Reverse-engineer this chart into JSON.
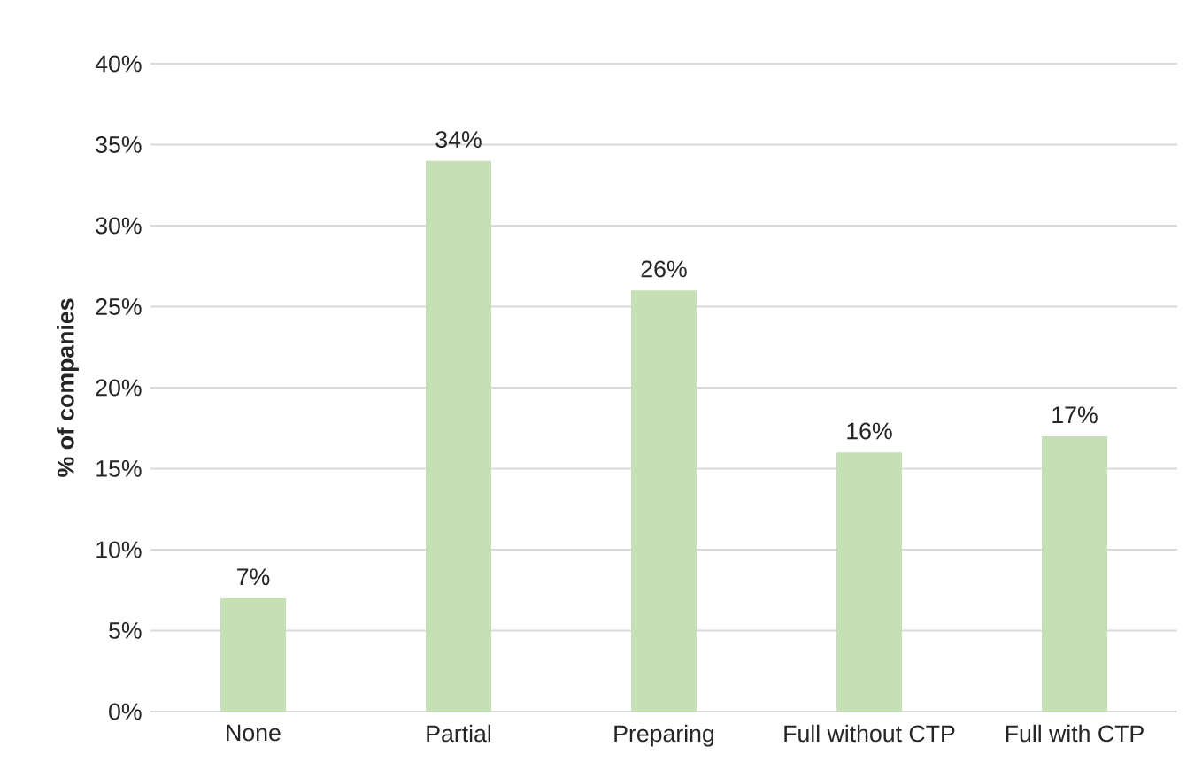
{
  "chart_data": {
    "type": "bar",
    "ylabel": "% of companies",
    "categories": [
      "None",
      "Partial",
      "Preparing",
      "Full without CTP",
      "Full with CTP"
    ],
    "values": [
      7,
      34,
      26,
      16,
      17
    ],
    "value_labels": [
      "7%",
      "34%",
      "26%",
      "16%",
      "17%"
    ],
    "color": "#c5e0b4",
    "ylim": [
      0,
      40
    ],
    "yticks": [
      {
        "value": 0,
        "label": "0%"
      },
      {
        "value": 5,
        "label": "5%"
      },
      {
        "value": 10,
        "label": "10%"
      },
      {
        "value": 15,
        "label": "15%"
      },
      {
        "value": 20,
        "label": "20%"
      },
      {
        "value": 25,
        "label": "25%"
      },
      {
        "value": 30,
        "label": "30%"
      },
      {
        "value": 35,
        "label": "35%"
      },
      {
        "value": 40,
        "label": "40%"
      }
    ],
    "grid": "y"
  }
}
